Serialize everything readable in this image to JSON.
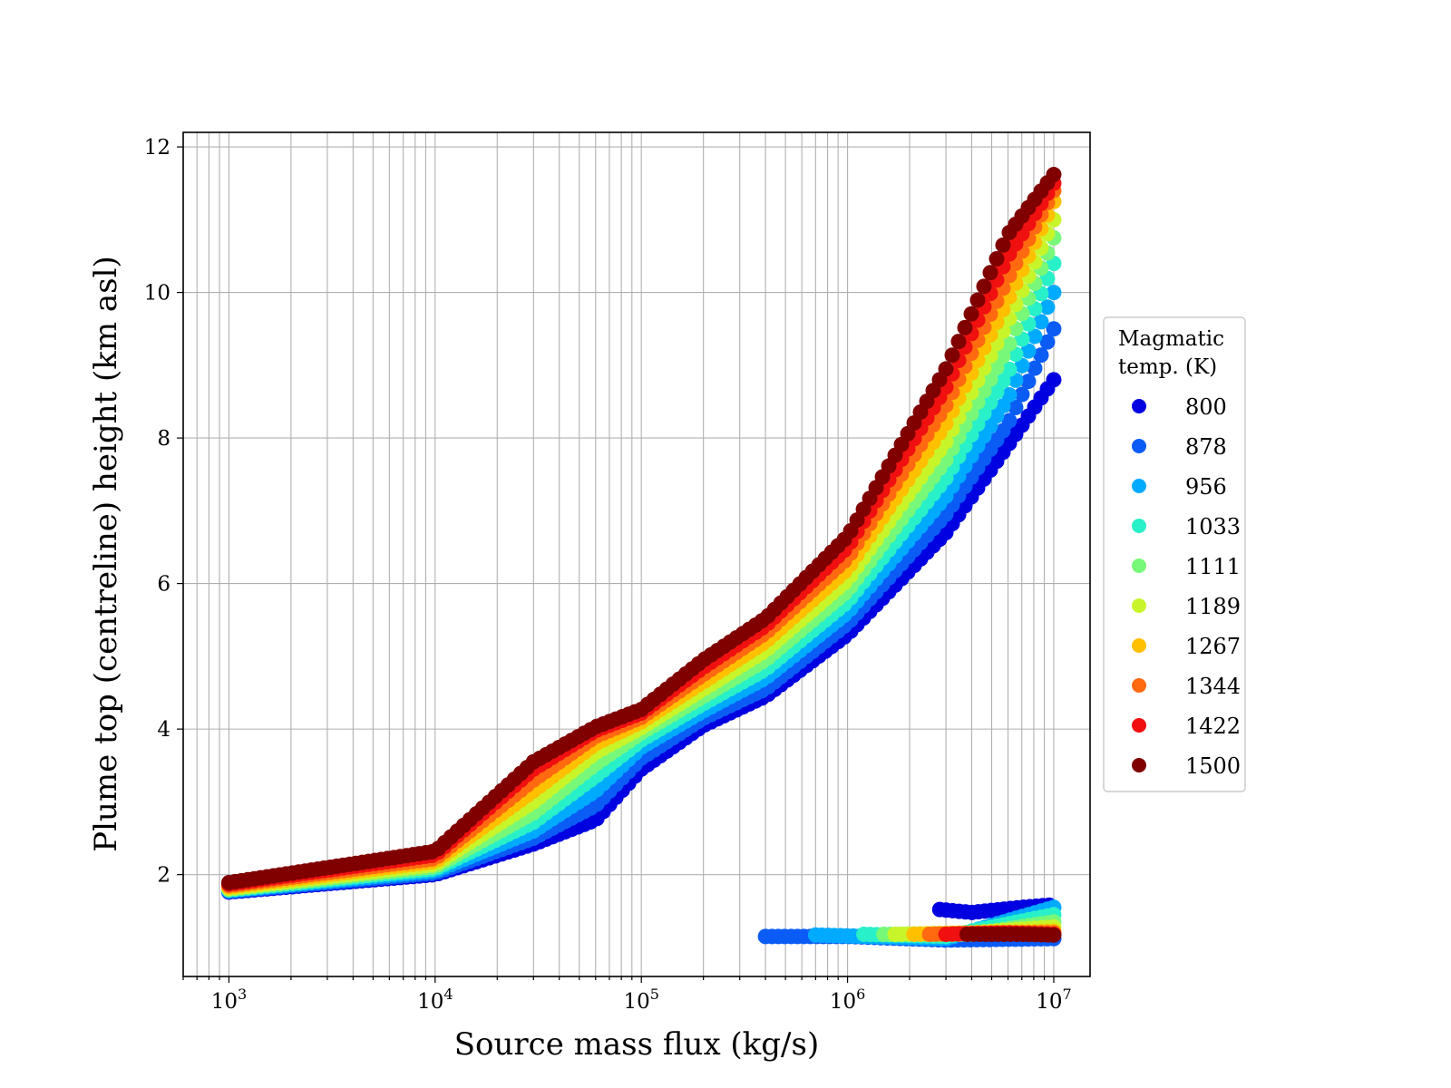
{
  "chart_data": {
    "type": "scatter",
    "xlabel": "Source mass flux (kg/s)",
    "ylabel": "Plume top (centreline) height (km asl)",
    "xscale": "log",
    "xlim": [
      600,
      15000000
    ],
    "ylim": [
      0.6,
      12.2
    ],
    "x_ticks": [
      1000,
      10000,
      100000,
      1000000,
      10000000
    ],
    "x_tick_labels": [
      {
        "base": "10",
        "exp": "3"
      },
      {
        "base": "10",
        "exp": "4"
      },
      {
        "base": "10",
        "exp": "5"
      },
      {
        "base": "10",
        "exp": "6"
      },
      {
        "base": "10",
        "exp": "7"
      }
    ],
    "y_ticks": [
      2,
      4,
      6,
      8,
      10,
      12
    ],
    "y_tick_labels": [
      "2",
      "4",
      "6",
      "8",
      "10",
      "12"
    ],
    "grid": true,
    "legend": {
      "placement": "right outside",
      "title_lines": [
        "Magmatic",
        "temp. (K)"
      ]
    },
    "series": [
      {
        "name": "800",
        "color": "#0000e0",
        "main_curve": [
          [
            1000,
            1.76
          ],
          [
            10000,
            2.0
          ],
          [
            30000,
            2.42
          ],
          [
            60000,
            2.75
          ],
          [
            100000,
            3.45
          ],
          [
            200000,
            4.05
          ],
          [
            400000,
            4.45
          ],
          [
            1000000,
            5.3
          ],
          [
            3000000,
            6.7
          ],
          [
            6000000,
            7.9
          ],
          [
            10000000,
            8.8
          ]
        ],
        "low_branch": [
          [
            2800000,
            1.52
          ],
          [
            4000000,
            1.48
          ],
          [
            7000000,
            1.55
          ],
          [
            9500000,
            1.58
          ]
        ]
      },
      {
        "name": "878",
        "color": "#0a5cf5",
        "main_curve": [
          [
            1000,
            1.77
          ],
          [
            10000,
            2.02
          ],
          [
            30000,
            2.5
          ],
          [
            60000,
            2.95
          ],
          [
            100000,
            3.6
          ],
          [
            200000,
            4.15
          ],
          [
            400000,
            4.55
          ],
          [
            1000000,
            5.45
          ],
          [
            3000000,
            6.95
          ],
          [
            6000000,
            8.2
          ],
          [
            10000000,
            9.5
          ]
        ],
        "low_branch": [
          [
            400000,
            1.15
          ],
          [
            1000000,
            1.15
          ],
          [
            3000000,
            1.1
          ],
          [
            10000000,
            1.12
          ]
        ]
      },
      {
        "name": "956",
        "color": "#00aaff",
        "main_curve": [
          [
            1000,
            1.78
          ],
          [
            10000,
            2.05
          ],
          [
            30000,
            2.6
          ],
          [
            60000,
            3.15
          ],
          [
            100000,
            3.75
          ],
          [
            200000,
            4.25
          ],
          [
            400000,
            4.7
          ],
          [
            1000000,
            5.6
          ],
          [
            3000000,
            7.2
          ],
          [
            6000000,
            8.55
          ],
          [
            10000000,
            10.0
          ]
        ],
        "low_branch": [
          [
            700000,
            1.17
          ],
          [
            3000000,
            1.12
          ],
          [
            10000000,
            1.55
          ]
        ]
      },
      {
        "name": "1033",
        "color": "#28f0c8",
        "main_curve": [
          [
            1000,
            1.79
          ],
          [
            10000,
            2.08
          ],
          [
            30000,
            2.72
          ],
          [
            60000,
            3.35
          ],
          [
            100000,
            3.85
          ],
          [
            200000,
            4.35
          ],
          [
            400000,
            4.82
          ],
          [
            1000000,
            5.75
          ],
          [
            3000000,
            7.45
          ],
          [
            6000000,
            8.9
          ],
          [
            10000000,
            10.4
          ]
        ],
        "low_branch": [
          [
            1200000,
            1.18
          ],
          [
            3000000,
            1.15
          ],
          [
            10000000,
            1.45
          ]
        ]
      },
      {
        "name": "1111",
        "color": "#78f878",
        "main_curve": [
          [
            1000,
            1.8
          ],
          [
            10000,
            2.11
          ],
          [
            30000,
            2.85
          ],
          [
            60000,
            3.52
          ],
          [
            100000,
            3.95
          ],
          [
            200000,
            4.45
          ],
          [
            400000,
            4.95
          ],
          [
            1000000,
            5.9
          ],
          [
            3000000,
            7.7
          ],
          [
            6000000,
            9.25
          ],
          [
            10000000,
            10.75
          ]
        ],
        "low_branch": [
          [
            1500000,
            1.18
          ],
          [
            4000000,
            1.18
          ],
          [
            10000000,
            1.35
          ]
        ]
      },
      {
        "name": "1189",
        "color": "#c8f52a",
        "main_curve": [
          [
            1000,
            1.81
          ],
          [
            10000,
            2.14
          ],
          [
            30000,
            3.0
          ],
          [
            60000,
            3.68
          ],
          [
            100000,
            4.02
          ],
          [
            200000,
            4.55
          ],
          [
            400000,
            5.08
          ],
          [
            1000000,
            6.05
          ],
          [
            3000000,
            7.95
          ],
          [
            6000000,
            9.6
          ],
          [
            10000000,
            11.0
          ]
        ],
        "low_branch": [
          [
            1700000,
            1.18
          ],
          [
            4000000,
            1.2
          ],
          [
            10000000,
            1.28
          ]
        ]
      },
      {
        "name": "1267",
        "color": "#ffc000",
        "main_curve": [
          [
            1000,
            1.83
          ],
          [
            10000,
            2.18
          ],
          [
            30000,
            3.15
          ],
          [
            60000,
            3.8
          ],
          [
            100000,
            4.1
          ],
          [
            200000,
            4.65
          ],
          [
            400000,
            5.2
          ],
          [
            1000000,
            6.2
          ],
          [
            3000000,
            8.2
          ],
          [
            6000000,
            9.9
          ],
          [
            10000000,
            11.25
          ]
        ],
        "low_branch": [
          [
            2100000,
            1.18
          ],
          [
            5000000,
            1.2
          ],
          [
            10000000,
            1.22
          ]
        ]
      },
      {
        "name": "1344",
        "color": "#ff6a10",
        "main_curve": [
          [
            1000,
            1.85
          ],
          [
            10000,
            2.22
          ],
          [
            30000,
            3.3
          ],
          [
            60000,
            3.9
          ],
          [
            100000,
            4.16
          ],
          [
            200000,
            4.75
          ],
          [
            400000,
            5.32
          ],
          [
            1000000,
            6.35
          ],
          [
            3000000,
            8.45
          ],
          [
            6000000,
            10.2
          ],
          [
            10000000,
            11.4
          ]
        ],
        "low_branch": [
          [
            2500000,
            1.18
          ],
          [
            5000000,
            1.2
          ],
          [
            10000000,
            1.2
          ]
        ]
      },
      {
        "name": "1422",
        "color": "#f01010",
        "main_curve": [
          [
            1000,
            1.87
          ],
          [
            10000,
            2.27
          ],
          [
            30000,
            3.45
          ],
          [
            60000,
            3.98
          ],
          [
            100000,
            4.22
          ],
          [
            200000,
            4.85
          ],
          [
            400000,
            5.42
          ],
          [
            1000000,
            6.5
          ],
          [
            3000000,
            8.7
          ],
          [
            6000000,
            10.5
          ],
          [
            10000000,
            11.5
          ]
        ],
        "low_branch": [
          [
            3000000,
            1.18
          ],
          [
            6000000,
            1.2
          ],
          [
            10000000,
            1.18
          ]
        ]
      },
      {
        "name": "1500",
        "color": "#800000",
        "main_curve": [
          [
            1000,
            1.89
          ],
          [
            10000,
            2.32
          ],
          [
            30000,
            3.55
          ],
          [
            60000,
            4.03
          ],
          [
            100000,
            4.27
          ],
          [
            200000,
            4.95
          ],
          [
            400000,
            5.52
          ],
          [
            1000000,
            6.65
          ],
          [
            3000000,
            8.95
          ],
          [
            6000000,
            10.8
          ],
          [
            10000000,
            11.62
          ]
        ],
        "low_branch": [
          [
            3800000,
            1.18
          ],
          [
            7000000,
            1.18
          ],
          [
            10000000,
            1.17
          ]
        ]
      }
    ]
  }
}
